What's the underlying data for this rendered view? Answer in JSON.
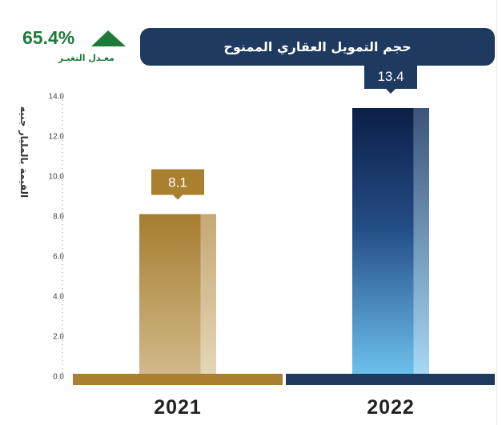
{
  "header": {
    "title": "حجم التمويل العقاري الممنوح"
  },
  "change": {
    "value": "65.4%",
    "label": "معـدل التغيـر",
    "direction": "up",
    "icon": "up-triangle-icon",
    "color": "#1f7a3a"
  },
  "colors": {
    "gold": "#a8802f",
    "navy": "#1e3a60",
    "sky": "#6cc0ec"
  },
  "chart_data": {
    "type": "bar",
    "categories": [
      "2021",
      "2022"
    ],
    "values": [
      8.1,
      13.4
    ],
    "ylabel": "القيمة بالمليار جنيه",
    "ylim": [
      0,
      14
    ],
    "yticks": [
      "0.0",
      "2.0",
      "4.0",
      "6.0",
      "8.0",
      "10.0",
      "12.0",
      "14.0"
    ],
    "grid": false
  }
}
